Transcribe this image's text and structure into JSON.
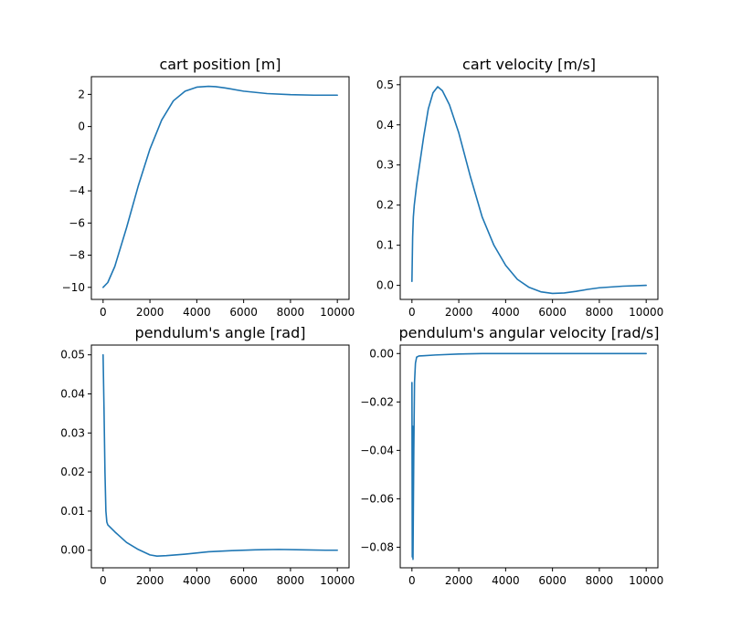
{
  "chart_data": [
    {
      "type": "line",
      "title": "cart position [m]",
      "color": "#1f77b4",
      "xlim": [
        -500,
        10500
      ],
      "ylim": [
        -10.75,
        3.1
      ],
      "xticks": [
        0,
        2000,
        4000,
        6000,
        8000,
        10000
      ],
      "xtick_labels": [
        "0",
        "2000",
        "4000",
        "6000",
        "8000",
        "10000"
      ],
      "yticks": [
        -10,
        -8,
        -6,
        -4,
        -2,
        0,
        2
      ],
      "ytick_labels": [
        "−10",
        "−8",
        "−6",
        "−4",
        "−2",
        "0",
        "2"
      ],
      "x": [
        0,
        200,
        500,
        1000,
        1500,
        2000,
        2500,
        3000,
        3500,
        4000,
        4500,
        4800,
        5200,
        6000,
        7000,
        8000,
        9000,
        10000
      ],
      "y": [
        -10.0,
        -9.7,
        -8.7,
        -6.3,
        -3.7,
        -1.4,
        0.4,
        1.6,
        2.2,
        2.45,
        2.5,
        2.48,
        2.4,
        2.2,
        2.05,
        1.98,
        1.95,
        1.95
      ]
    },
    {
      "type": "line",
      "title": "cart velocity [m/s]",
      "color": "#1f77b4",
      "xlim": [
        -500,
        10500
      ],
      "ylim": [
        -0.035,
        0.52
      ],
      "xticks": [
        0,
        2000,
        4000,
        6000,
        8000,
        10000
      ],
      "xtick_labels": [
        "0",
        "2000",
        "4000",
        "6000",
        "8000",
        "10000"
      ],
      "yticks": [
        0.0,
        0.1,
        0.2,
        0.3,
        0.4,
        0.5
      ],
      "ytick_labels": [
        "0.0",
        "0.1",
        "0.2",
        "0.3",
        "0.4",
        "0.5"
      ],
      "x": [
        0,
        30,
        60,
        100,
        200,
        300,
        500,
        700,
        900,
        1100,
        1300,
        1600,
        2000,
        2500,
        3000,
        3500,
        4000,
        4500,
        5000,
        5500,
        6000,
        6500,
        7000,
        7500,
        8000,
        9000,
        10000
      ],
      "y": [
        0.01,
        0.12,
        0.17,
        0.2,
        0.25,
        0.29,
        0.37,
        0.44,
        0.48,
        0.495,
        0.485,
        0.45,
        0.38,
        0.27,
        0.17,
        0.1,
        0.05,
        0.015,
        -0.005,
        -0.016,
        -0.02,
        -0.019,
        -0.015,
        -0.01,
        -0.006,
        -0.002,
        0.0
      ]
    },
    {
      "type": "line",
      "title": "pendulum's angle [rad]",
      "color": "#1f77b4",
      "xlim": [
        -500,
        10500
      ],
      "ylim": [
        -0.0045,
        0.0525
      ],
      "xticks": [
        0,
        2000,
        4000,
        6000,
        8000,
        10000
      ],
      "xtick_labels": [
        "0",
        "2000",
        "4000",
        "6000",
        "8000",
        "10000"
      ],
      "yticks": [
        0.0,
        0.01,
        0.02,
        0.03,
        0.04,
        0.05
      ],
      "ytick_labels": [
        "0.00",
        "0.01",
        "0.02",
        "0.03",
        "0.04",
        "0.05"
      ],
      "x": [
        0,
        40,
        80,
        120,
        160,
        200,
        500,
        1000,
        1500,
        2000,
        2300,
        2700,
        3500,
        4500,
        5500,
        6500,
        7500,
        8500,
        9500,
        10000
      ],
      "y": [
        0.05,
        0.036,
        0.02,
        0.01,
        0.0072,
        0.0065,
        0.0047,
        0.002,
        0.0002,
        -0.0012,
        -0.0015,
        -0.0014,
        -0.001,
        -0.0004,
        -0.0001,
        0.0001,
        0.0002,
        0.0001,
        0.0,
        0.0
      ]
    },
    {
      "type": "line",
      "title": "pendulum's angular velocity [rad/s]",
      "color": "#1f77b4",
      "xlim": [
        -500,
        10500
      ],
      "ylim": [
        -0.0885,
        0.0035
      ],
      "xticks": [
        0,
        2000,
        4000,
        6000,
        8000,
        10000
      ],
      "xtick_labels": [
        "0",
        "2000",
        "4000",
        "6000",
        "8000",
        "10000"
      ],
      "yticks": [
        0.0,
        -0.02,
        -0.04,
        -0.06,
        -0.08
      ],
      "ytick_labels": [
        "0.00",
        "−0.02",
        "−0.04",
        "−0.06",
        "−0.08"
      ],
      "x": [
        0,
        15,
        30,
        45,
        60,
        80,
        110,
        150,
        200,
        300,
        500,
        1000,
        2000,
        3000,
        4000,
        6000,
        8000,
        10000
      ],
      "y": [
        -0.012,
        -0.084,
        -0.03,
        -0.085,
        -0.065,
        -0.04,
        -0.012,
        -0.004,
        -0.0015,
        -0.001,
        -0.0009,
        -0.0006,
        -0.0002,
        0.0,
        0.0,
        0.0,
        0.0,
        0.0
      ]
    }
  ]
}
